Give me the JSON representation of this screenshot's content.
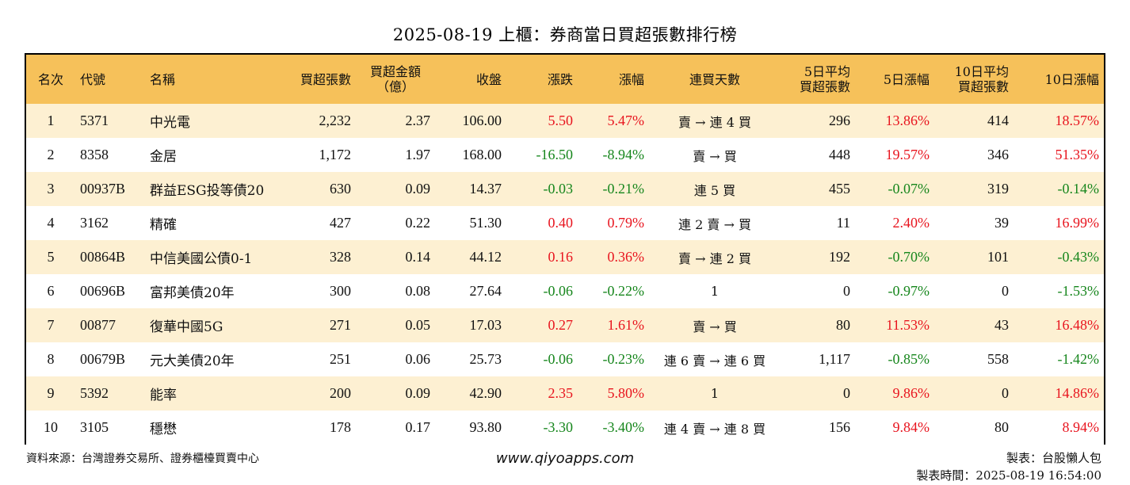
{
  "title": "2025-08-19 上櫃：券商當日買超張數排行榜",
  "columns": {
    "rank": "名次",
    "code": "代號",
    "name": "名稱",
    "net_buy_lots": "買超張數",
    "net_buy_amount_l1": "買超金額",
    "net_buy_amount_l2": "（億）",
    "close": "收盤",
    "change": "漲跌",
    "change_pct": "漲幅",
    "consec_days": "連買天數",
    "avg5_l1": "5日平均",
    "avg5_l2": "買超張數",
    "pct5": "5日漲幅",
    "avg10_l1": "10日平均",
    "avg10_l2": "買超張數",
    "pct10": "10日漲幅"
  },
  "rows": [
    {
      "rank": "1",
      "code": "5371",
      "name": "中光電",
      "lots": "2,232",
      "amount": "2.37",
      "close": "106.00",
      "change": "5.50",
      "change_dir": "up",
      "pct": "5.47%",
      "pct_dir": "up",
      "days": "賣 → 連 4 買",
      "avg5": "296",
      "pct5": "13.86%",
      "pct5_dir": "up",
      "avg10": "414",
      "pct10": "18.57%",
      "pct10_dir": "up"
    },
    {
      "rank": "2",
      "code": "8358",
      "name": "金居",
      "lots": "1,172",
      "amount": "1.97",
      "close": "168.00",
      "change": "-16.50",
      "change_dir": "down",
      "pct": "-8.94%",
      "pct_dir": "down",
      "days": "賣 → 買",
      "avg5": "448",
      "pct5": "19.57%",
      "pct5_dir": "up",
      "avg10": "346",
      "pct10": "51.35%",
      "pct10_dir": "up"
    },
    {
      "rank": "3",
      "code": "00937B",
      "name": "群益ESG投等債20",
      "lots": "630",
      "amount": "0.09",
      "close": "14.37",
      "change": "-0.03",
      "change_dir": "down",
      "pct": "-0.21%",
      "pct_dir": "down",
      "days": "連 5 買",
      "avg5": "455",
      "pct5": "-0.07%",
      "pct5_dir": "down",
      "avg10": "319",
      "pct10": "-0.14%",
      "pct10_dir": "down"
    },
    {
      "rank": "4",
      "code": "3162",
      "name": "精確",
      "lots": "427",
      "amount": "0.22",
      "close": "51.30",
      "change": "0.40",
      "change_dir": "up",
      "pct": "0.79%",
      "pct_dir": "up",
      "days": "連 2 賣 → 買",
      "avg5": "11",
      "pct5": "2.40%",
      "pct5_dir": "up",
      "avg10": "39",
      "pct10": "16.99%",
      "pct10_dir": "up"
    },
    {
      "rank": "5",
      "code": "00864B",
      "name": "中信美國公債0-1",
      "lots": "328",
      "amount": "0.14",
      "close": "44.12",
      "change": "0.16",
      "change_dir": "up",
      "pct": "0.36%",
      "pct_dir": "up",
      "days": "賣 → 連 2 買",
      "avg5": "192",
      "pct5": "-0.70%",
      "pct5_dir": "down",
      "avg10": "101",
      "pct10": "-0.43%",
      "pct10_dir": "down"
    },
    {
      "rank": "6",
      "code": "00696B",
      "name": "富邦美債20年",
      "lots": "300",
      "amount": "0.08",
      "close": "27.64",
      "change": "-0.06",
      "change_dir": "down",
      "pct": "-0.22%",
      "pct_dir": "down",
      "days": "1",
      "avg5": "0",
      "pct5": "-0.97%",
      "pct5_dir": "down",
      "avg10": "0",
      "pct10": "-1.53%",
      "pct10_dir": "down"
    },
    {
      "rank": "7",
      "code": "00877",
      "name": "復華中國5G",
      "lots": "271",
      "amount": "0.05",
      "close": "17.03",
      "change": "0.27",
      "change_dir": "up",
      "pct": "1.61%",
      "pct_dir": "up",
      "days": "賣 → 買",
      "avg5": "80",
      "pct5": "11.53%",
      "pct5_dir": "up",
      "avg10": "43",
      "pct10": "16.48%",
      "pct10_dir": "up"
    },
    {
      "rank": "8",
      "code": "00679B",
      "name": "元大美債20年",
      "lots": "251",
      "amount": "0.06",
      "close": "25.73",
      "change": "-0.06",
      "change_dir": "down",
      "pct": "-0.23%",
      "pct_dir": "down",
      "days": "連 6 賣 → 連 6 買",
      "avg5": "1,117",
      "pct5": "-0.85%",
      "pct5_dir": "down",
      "avg10": "558",
      "pct10": "-1.42%",
      "pct10_dir": "down"
    },
    {
      "rank": "9",
      "code": "5392",
      "name": "能率",
      "lots": "200",
      "amount": "0.09",
      "close": "42.90",
      "change": "2.35",
      "change_dir": "up",
      "pct": "5.80%",
      "pct_dir": "up",
      "days": "1",
      "avg5": "0",
      "pct5": "9.86%",
      "pct5_dir": "up",
      "avg10": "0",
      "pct10": "14.86%",
      "pct10_dir": "up"
    },
    {
      "rank": "10",
      "code": "3105",
      "name": "穩懋",
      "lots": "178",
      "amount": "0.17",
      "close": "93.80",
      "change": "-3.30",
      "change_dir": "down",
      "pct": "-3.40%",
      "pct_dir": "down",
      "days": "連 4 賣 → 連 8 買",
      "avg5": "156",
      "pct5": "9.84%",
      "pct5_dir": "up",
      "avg10": "80",
      "pct10": "8.94%",
      "pct10_dir": "up"
    }
  ],
  "footer": {
    "source": "資料來源：台灣證券交易所、證券櫃檯買賣中心",
    "url": "www.qiyoapps.com",
    "maker": "製表：台股懶人包",
    "made_time": "製表時間：2025-08-19 16:54:00"
  },
  "colors": {
    "header_bg": "#f6c15a",
    "odd_row_bg": "#fdf0d2",
    "up": "#e8141e",
    "down": "#16861c"
  }
}
